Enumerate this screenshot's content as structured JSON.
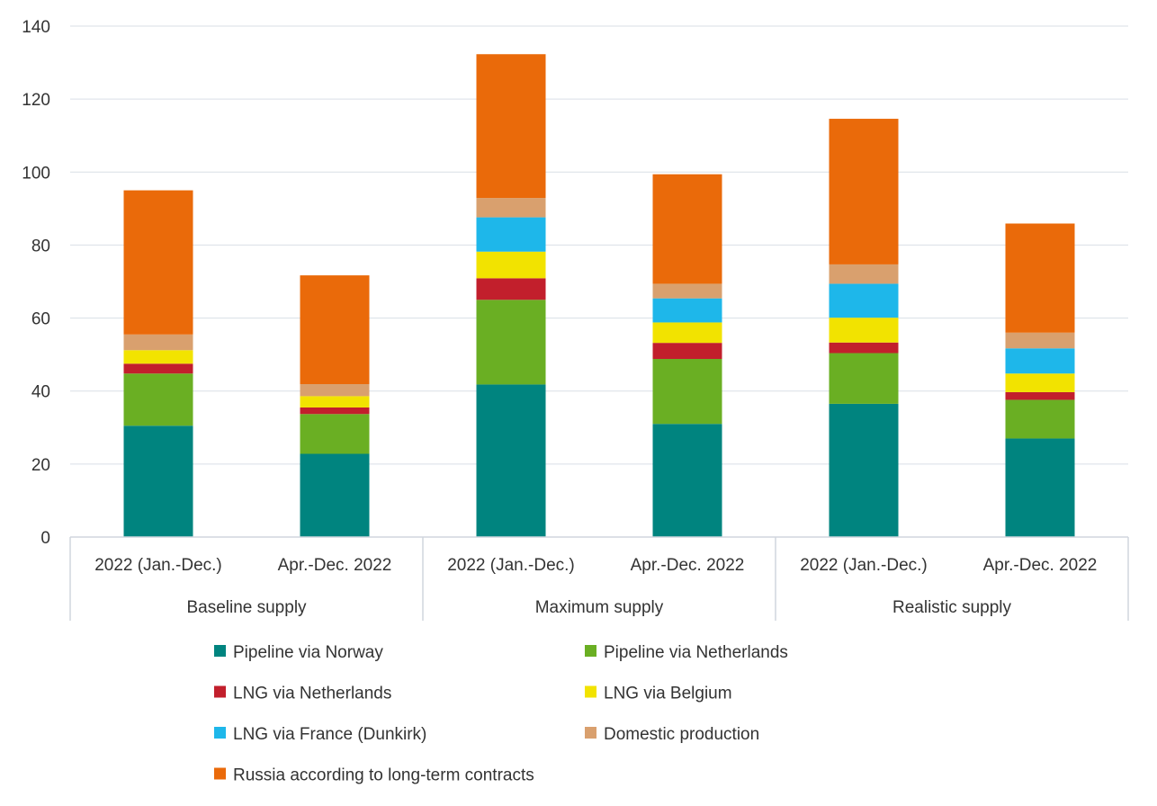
{
  "chart_data": {
    "type": "bar",
    "stacked": true,
    "title": "",
    "xlabel": "",
    "ylabel": "",
    "ylim": [
      0,
      140
    ],
    "yticks": [
      0,
      20,
      40,
      60,
      80,
      100,
      120,
      140
    ],
    "grid": true,
    "legend_position": "bottom",
    "groups": [
      {
        "label": "Baseline supply",
        "categories": [
          "2022 (Jan.-Dec.)",
          "Apr.-Dec. 2022"
        ]
      },
      {
        "label": "Maximum supply",
        "categories": [
          "2022 (Jan.-Dec.)",
          "Apr.-Dec. 2022"
        ]
      },
      {
        "label": "Realistic supply",
        "categories": [
          "2022 (Jan.-Dec.)",
          "Apr.-Dec. 2022"
        ]
      }
    ],
    "categories": [
      "2022 (Jan.-Dec.)",
      "Apr.-Dec. 2022",
      "2022 (Jan.-Dec.)",
      "Apr.-Dec. 2022",
      "2022 (Jan.-Dec.)",
      "Apr.-Dec. 2022"
    ],
    "series": [
      {
        "name": "Pipeline via Norway",
        "color": "#00847f",
        "values": [
          30.5,
          22.8,
          41.8,
          31.0,
          36.5,
          27.0
        ]
      },
      {
        "name": "Pipeline via Netherlands",
        "color": "#6aaf23",
        "values": [
          14.3,
          10.9,
          23.2,
          17.8,
          13.9,
          10.6
        ]
      },
      {
        "name": "LNG via Netherlands",
        "color": "#c21f2c",
        "values": [
          2.7,
          1.8,
          5.9,
          4.4,
          2.9,
          2.1
        ]
      },
      {
        "name": "LNG via Belgium",
        "color": "#f2e300",
        "values": [
          3.7,
          3.1,
          7.3,
          5.6,
          6.8,
          5.1
        ]
      },
      {
        "name": "LNG via France (Dunkirk)",
        "color": "#1eb7ea",
        "values": [
          0,
          0,
          9.4,
          6.6,
          9.3,
          6.9
        ]
      },
      {
        "name": "Domestic production",
        "color": "#d9a06e",
        "values": [
          4.3,
          3.3,
          5.3,
          4.0,
          5.3,
          4.3
        ]
      },
      {
        "name": "Russia according to long-term contracts",
        "color": "#ea6a0a",
        "values": [
          39.5,
          29.8,
          39.4,
          30.0,
          39.9,
          29.9
        ]
      }
    ]
  }
}
